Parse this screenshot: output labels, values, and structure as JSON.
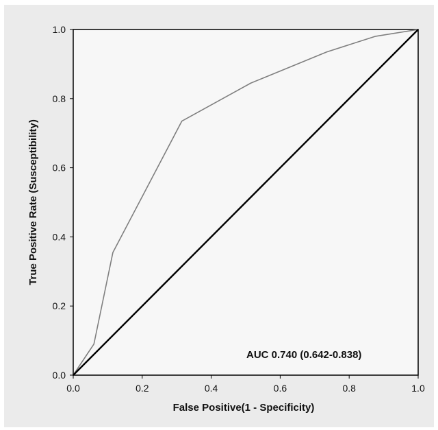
{
  "chart_data": {
    "type": "line",
    "title": "",
    "xlabel": "False Positive(1 - Specificity)",
    "ylabel": "True Positive Rate (Susceptibility)",
    "xlim": [
      0.0,
      1.0
    ],
    "ylim": [
      0.0,
      1.0
    ],
    "x_ticks": [
      "0.0",
      "0.2",
      "0.4",
      "0.6",
      "0.8",
      "1.0"
    ],
    "y_ticks": [
      "0.0",
      "0.2",
      "0.4",
      "0.6",
      "0.8",
      "1.0"
    ],
    "grid": false,
    "series": [
      {
        "points": [
          {
            "x": 0.0,
            "y": 0.0
          },
          {
            "x": 0.06,
            "y": 0.09
          },
          {
            "x": 0.115,
            "y": 0.355
          },
          {
            "x": 0.315,
            "y": 0.735
          },
          {
            "x": 0.515,
            "y": 0.845
          },
          {
            "x": 0.735,
            "y": 0.935
          },
          {
            "x": 0.875,
            "y": 0.98
          },
          {
            "x": 1.0,
            "y": 1.0
          }
        ],
        "color": "#7f7f7f"
      },
      {
        "points": [
          {
            "x": 0.0,
            "y": 0.0
          },
          {
            "x": 1.0,
            "y": 1.0
          }
        ],
        "color": "#000000"
      }
    ],
    "annotation": "AUC 0.740 (0.642-0.838)"
  },
  "colors": {
    "figure_background": "#ebebeb",
    "plot_background": "#f7f7f7",
    "frame": "#000000"
  }
}
